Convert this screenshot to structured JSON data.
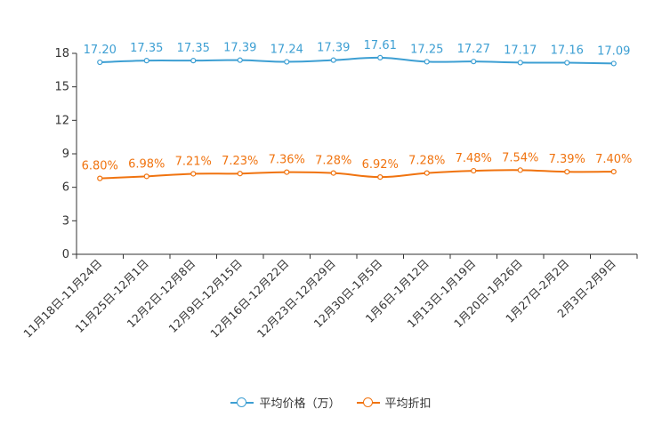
{
  "chart_data": {
    "type": "line",
    "title": "",
    "xlabel": "",
    "ylabel": "",
    "ylim": [
      0,
      18
    ],
    "yticks": [
      0,
      3,
      6,
      9,
      12,
      15,
      18
    ],
    "categories": [
      "11月18日-11月24日",
      "11月25日-12月1日",
      "12月2日-12月8日",
      "12月9日-12月15日",
      "12月16日-12月22日",
      "12月23日-12月29日",
      "12月30日-1月5日",
      "1月6日-1月12日",
      "1月13日-1月19日",
      "1月20日-1月26日",
      "1月27日-2月2日",
      "2月3日-2月9日"
    ],
    "series": [
      {
        "name": "平均价格（万）",
        "color": "#3d9fd3",
        "values": [
          17.2,
          17.35,
          17.35,
          17.39,
          17.24,
          17.39,
          17.61,
          17.25,
          17.27,
          17.17,
          17.16,
          17.09
        ],
        "labels": [
          "17.20",
          "17.35",
          "17.35",
          "17.39",
          "17.24",
          "17.39",
          "17.61",
          "17.25",
          "17.27",
          "17.17",
          "17.16",
          "17.09"
        ]
      },
      {
        "name": "平均折扣",
        "color": "#f0730f",
        "values": [
          6.8,
          6.98,
          7.21,
          7.23,
          7.36,
          7.28,
          6.92,
          7.28,
          7.48,
          7.54,
          7.39,
          7.4
        ],
        "labels": [
          "6.80%",
          "6.98%",
          "7.21%",
          "7.23%",
          "7.36%",
          "7.28%",
          "6.92%",
          "7.28%",
          "7.48%",
          "7.54%",
          "7.39%",
          "7.40%"
        ]
      }
    ]
  }
}
